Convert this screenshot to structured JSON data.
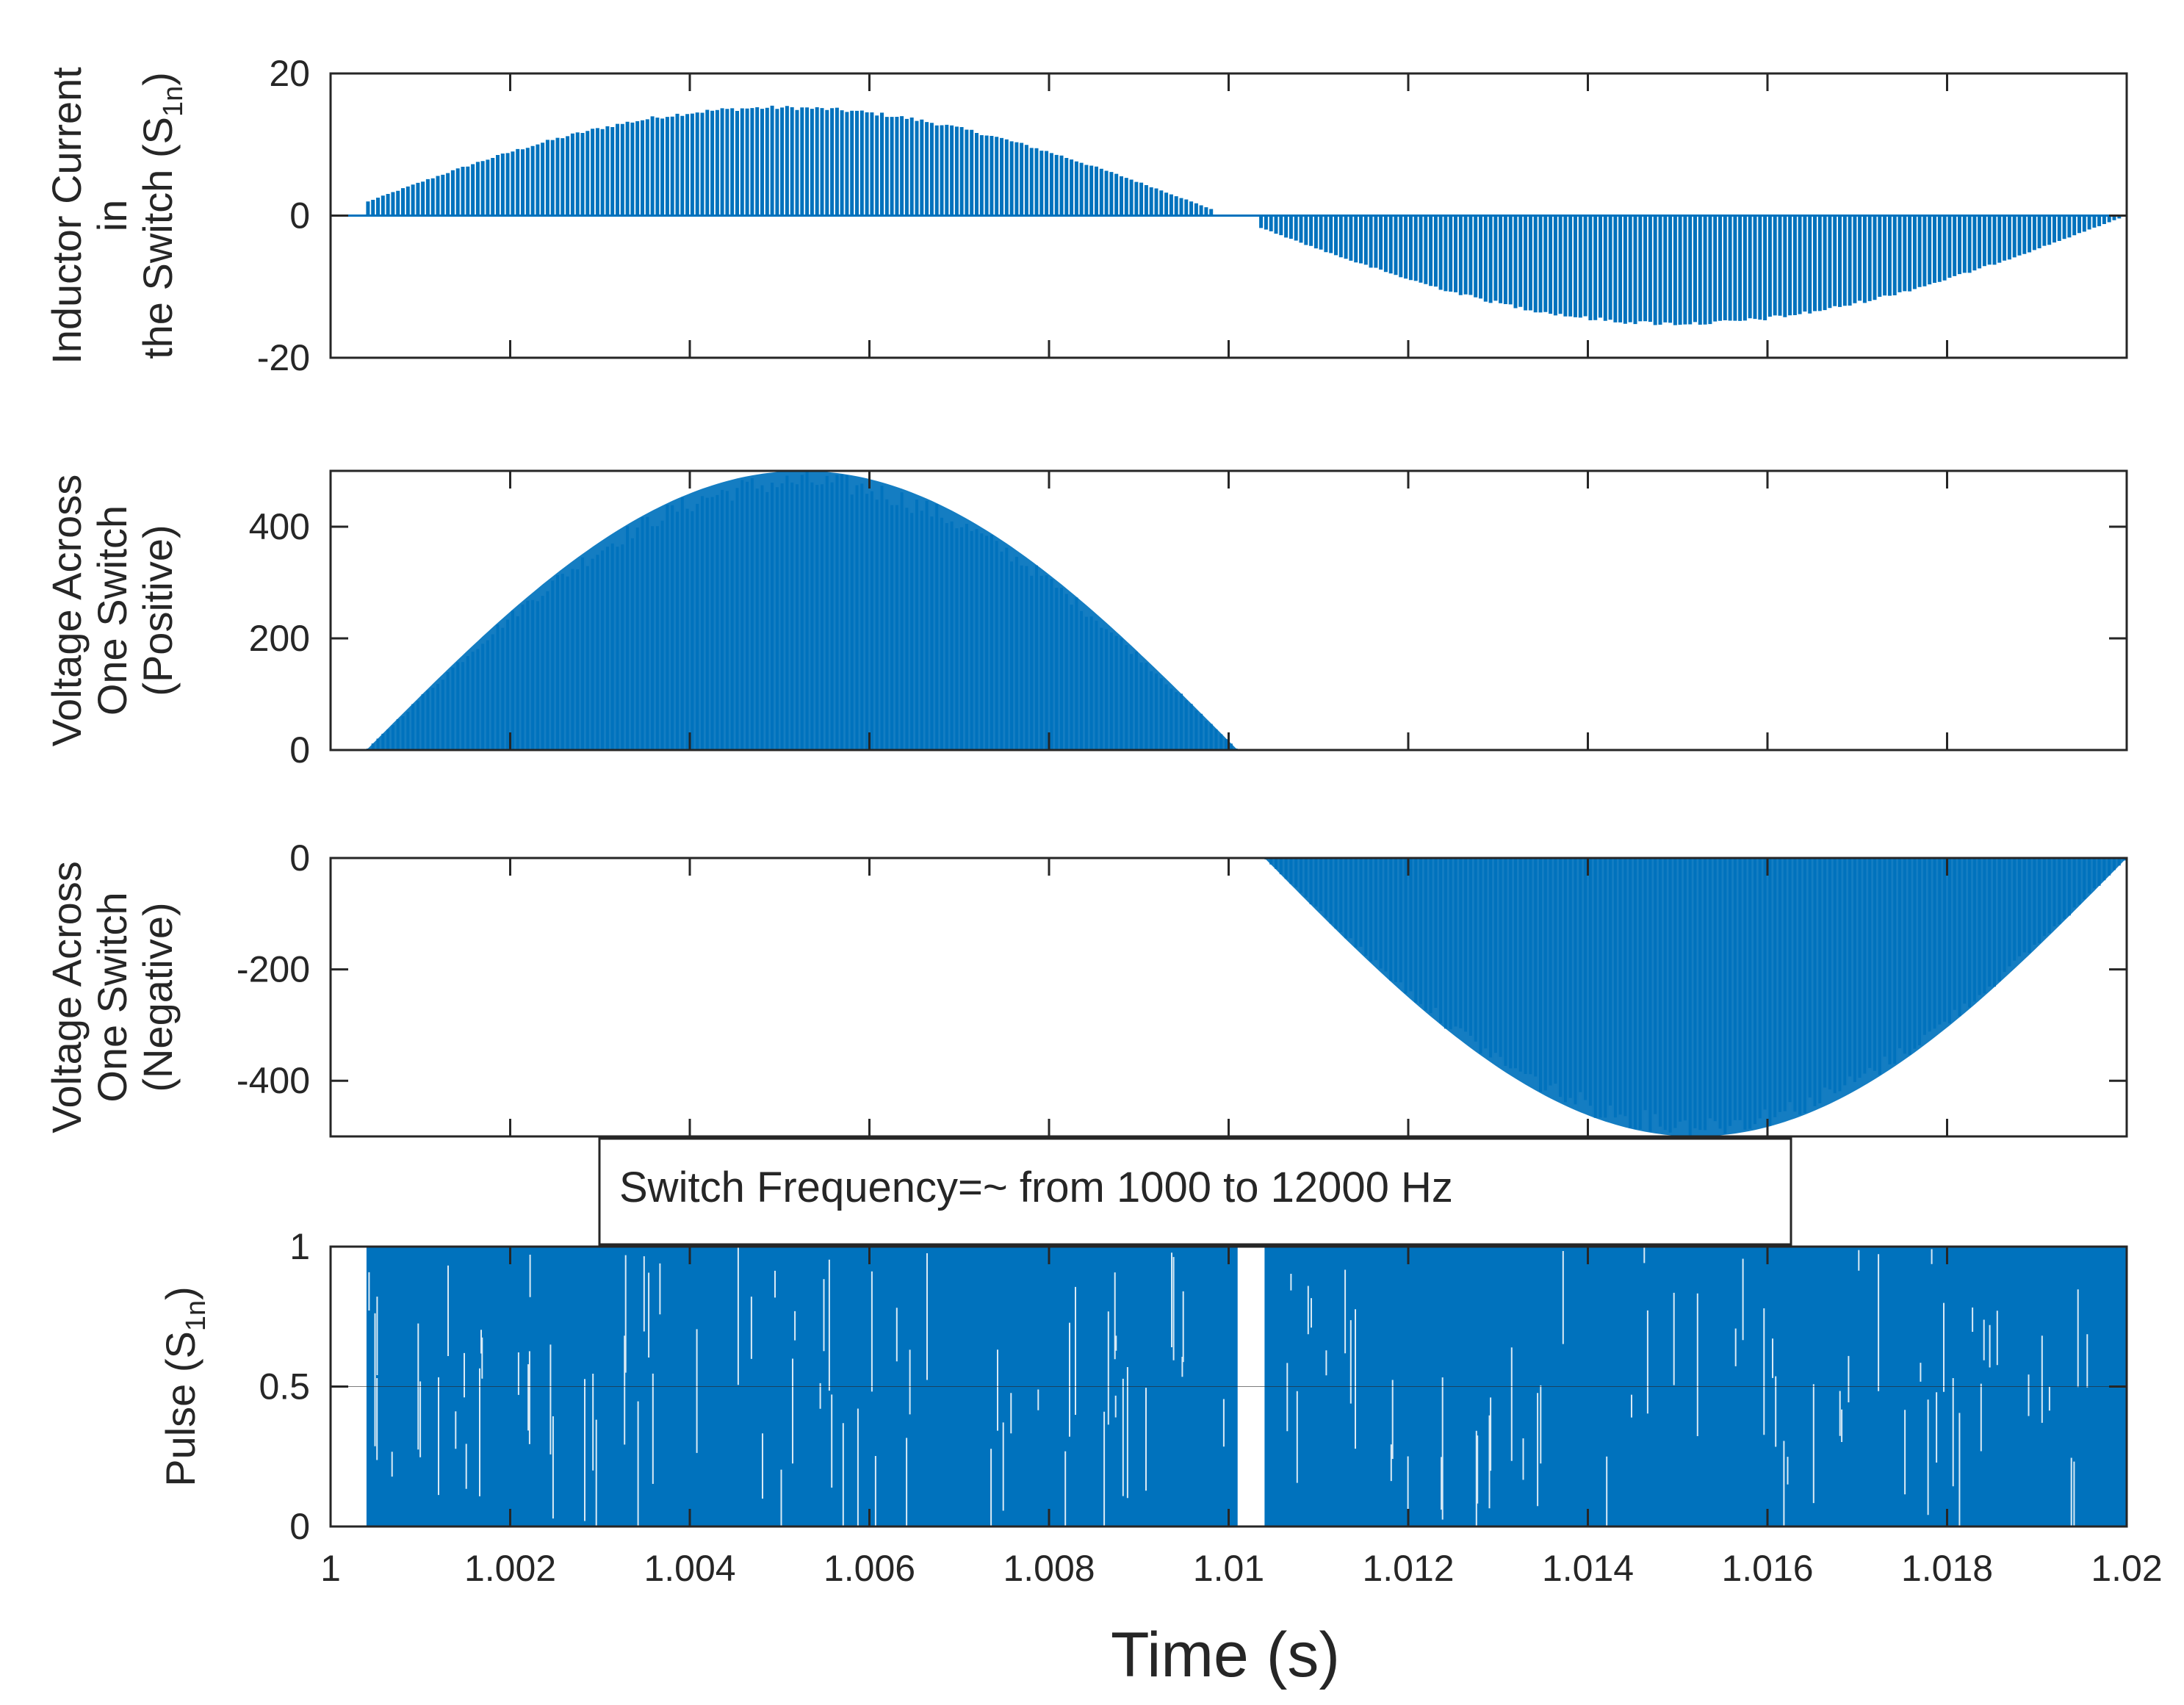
{
  "chart_data": {
    "type": "line",
    "layout": "4 vertically stacked subplots sharing the x axis",
    "xlabel": "Time (s)",
    "x_range": [
      1,
      1.02
    ],
    "x_ticks": [
      1,
      1.002,
      1.004,
      1.006,
      1.008,
      1.01,
      1.012,
      1.014,
      1.016,
      1.018,
      1.02
    ],
    "x_tick_labels": [
      "1",
      "1.002",
      "1.004",
      "1.006",
      "1.008",
      "1.01",
      "1.012",
      "1.014",
      "1.016",
      "1.018",
      "1.02"
    ],
    "series_color": "#0072BD",
    "annotation": "Switch Frequency=~ from 1000 to 12000 Hz",
    "subplots": [
      {
        "id": "inductor-current",
        "ylabel_lines": [
          "Inductor Current",
          "in",
          "the Switch (S"
        ],
        "ylabel_subscript": "1n",
        "ylabel_suffix": ")",
        "ylim": [
          -20,
          20
        ],
        "y_ticks": [
          20,
          0,
          -20
        ],
        "y_tick_labels": [
          "20",
          "0",
          "-20"
        ],
        "signal": {
          "kind": "pwm_envelope_full_sine",
          "amplitude": 15.5,
          "period_s": 0.02,
          "zero_cross_s": 1.0101,
          "start_s": 1.0004
        },
        "series": [
          {
            "name": "Inductor current",
            "peak": 15.5,
            "trough": -15.5
          }
        ]
      },
      {
        "id": "voltage-positive",
        "ylabel_lines": [
          "Voltage Across",
          "One Switch",
          "(Positive)"
        ],
        "ylim": [
          0,
          500
        ],
        "y_ticks": [
          400,
          200,
          0
        ],
        "y_tick_labels": [
          "400",
          "200",
          "0"
        ],
        "signal": {
          "kind": "pwm_envelope_positive_half",
          "amplitude": 500,
          "start_s": 1.0004,
          "end_s": 1.0101,
          "peak_time_s": 1.0054
        },
        "series": [
          {
            "name": "Voltage (positive)",
            "peak": 500
          }
        ]
      },
      {
        "id": "voltage-negative",
        "ylabel_lines": [
          "Voltage Across",
          "One Switch",
          "(Negative)"
        ],
        "ylim": [
          -500,
          0
        ],
        "y_ticks": [
          0,
          -200,
          -400
        ],
        "y_tick_labels": [
          "0",
          "-200",
          "-400"
        ],
        "signal": {
          "kind": "pwm_envelope_negative_half",
          "amplitude": -500,
          "start_s": 1.0104,
          "end_s": 1.02,
          "peak_time_s": 1.0153
        },
        "series": [
          {
            "name": "Voltage (negative)",
            "trough": -500
          }
        ]
      },
      {
        "id": "pulse",
        "ylabel_lines": [
          "Pulse (S"
        ],
        "ylabel_subscript": "1n",
        "ylabel_suffix": ")",
        "ylim": [
          0,
          1
        ],
        "y_ticks": [
          1,
          0.5,
          0
        ],
        "y_tick_labels": [
          "1",
          "0.5",
          "0"
        ],
        "signal": {
          "kind": "pwm_pulse",
          "gap_start_s": 1.0101,
          "gap_end_s": 1.0104
        },
        "series": [
          {
            "name": "Pulse",
            "high": 1,
            "low": 0
          }
        ]
      }
    ]
  }
}
